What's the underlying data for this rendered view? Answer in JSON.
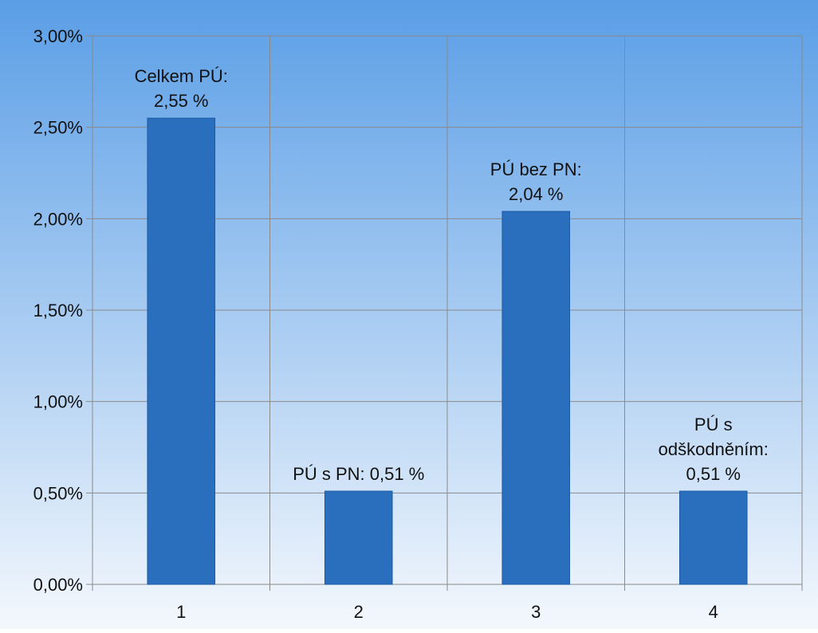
{
  "chart_data": {
    "type": "bar",
    "title": "",
    "xlabel": "",
    "ylabel": "",
    "categories": [
      "1",
      "2",
      "3",
      "4"
    ],
    "series": [
      {
        "values": [
          2.55,
          0.51,
          2.04,
          0.51
        ]
      }
    ],
    "data_labels": [
      [
        "Celkem PÚ:",
        "2,55 %"
      ],
      [
        "PÚ s PN: 0,51 %"
      ],
      [
        "PÚ bez PN:",
        "2,04 %"
      ],
      [
        "PÚ s",
        "odškodněním:",
        "0,51 %"
      ]
    ],
    "ylim": [
      0,
      3
    ],
    "y_ticks": [
      {
        "value": 0,
        "label": "0,00%"
      },
      {
        "value": 0.5,
        "label": "0,50%"
      },
      {
        "value": 1,
        "label": "1,00%"
      },
      {
        "value": 1.5,
        "label": "1,50%"
      },
      {
        "value": 2,
        "label": "2,00%"
      },
      {
        "value": 2.5,
        "label": "2,50%"
      },
      {
        "value": 3,
        "label": "3,00%"
      }
    ],
    "grid": true,
    "legend": "none",
    "colors": {
      "bar": "#2a6fbe",
      "bar_edge": "#1d5aa3",
      "background_top": "#5a9ee6",
      "background_bottom": "#f4f8fd",
      "grid": "#8a8a8a"
    }
  }
}
